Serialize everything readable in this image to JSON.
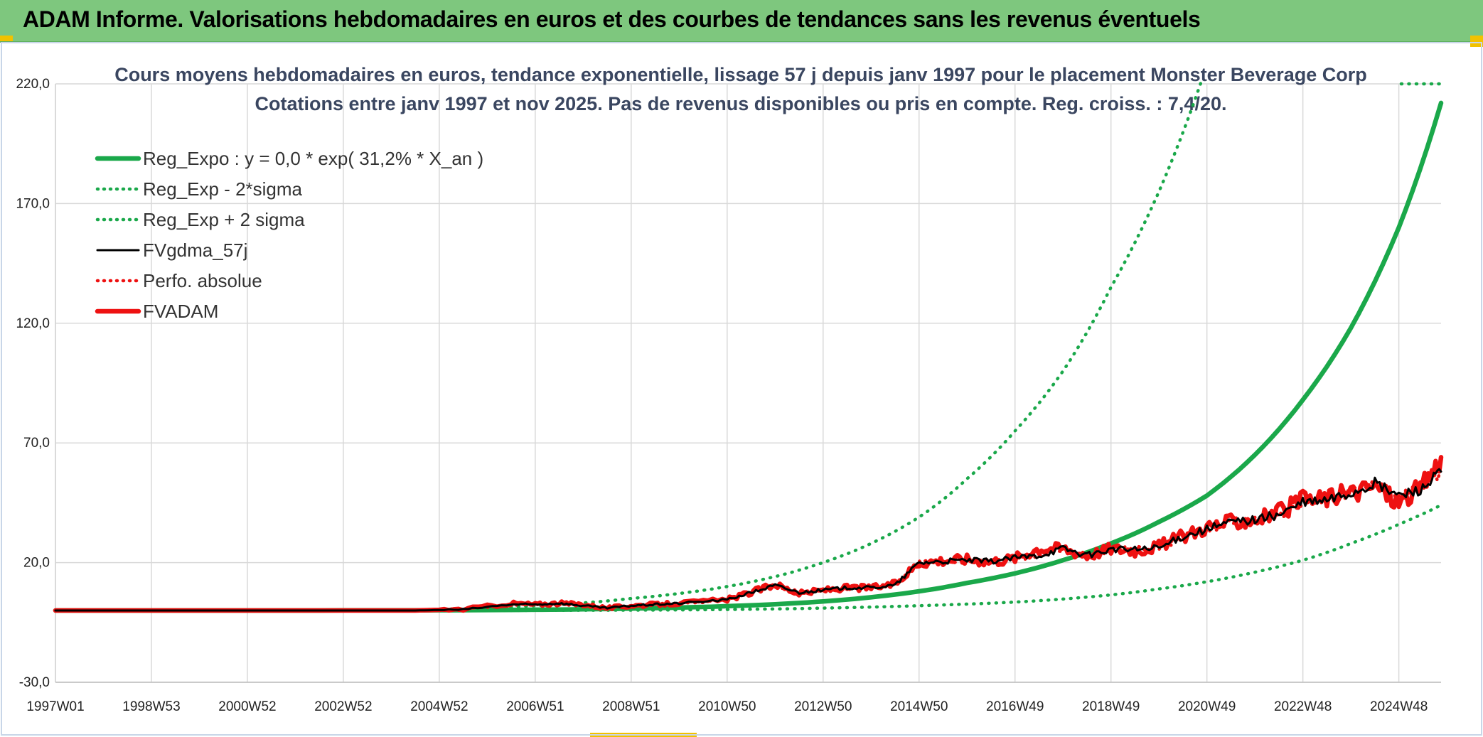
{
  "banner": {
    "title": "ADAM Informe. Valorisations hebdomadaires en euros et des courbes de tendances sans les revenus éventuels"
  },
  "colors": {
    "banner_bg": "#7ec77e",
    "green": "#1aa84a",
    "red": "#ee1111",
    "black": "#000000",
    "grid": "#d9d9d9",
    "title_text": "#3a4660"
  },
  "chart_data": {
    "type": "line",
    "title": "Cours moyens hebdomadaires en euros, tendance exponentielle, lissage 57 j depuis janv 1997 pour le placement Monster Beverage Corp",
    "subtitle": "Cotations entre janv 1997 et nov 2025. Pas de revenus disponibles ou pris en compte. Reg. croiss. : 7,4/20.",
    "xlabel": "",
    "ylabel": "",
    "x_range": [
      1997.0,
      2025.88
    ],
    "ylim": [
      -30,
      220
    ],
    "grid": true,
    "legend_position": "top-left",
    "y_ticks": [
      "220,0",
      "170,0",
      "120,0",
      "70,0",
      "20,0",
      "-30,0"
    ],
    "y_tick_values": [
      220,
      170,
      120,
      70,
      20,
      -30
    ],
    "x_tick_labels": [
      "1997W01",
      "1998W53",
      "2000W52",
      "2002W52",
      "2004W52",
      "2006W51",
      "2008W51",
      "2010W50",
      "2012W50",
      "2014W50",
      "2016W49",
      "2018W49",
      "2020W49",
      "2022W48",
      "2024W48"
    ],
    "x_tick_values": [
      1997.0,
      1999.0,
      2001.0,
      2003.0,
      2005.0,
      2007.0,
      2009.0,
      2011.0,
      2013.0,
      2015.0,
      2017.0,
      2019.0,
      2021.0,
      2023.0,
      2025.0
    ],
    "legend": [
      {
        "label": "Reg_Expo : y = 0,0 * exp( 31,2% *  X_an )",
        "color": "#1aa84a",
        "style": "solid-thick"
      },
      {
        "label": "Reg_Exp - 2*sigma",
        "color": "#1aa84a",
        "style": "dotted"
      },
      {
        "label": "Reg_Exp + 2 sigma",
        "color": "#1aa84a",
        "style": "dotted"
      },
      {
        "label": "FVgdma_57j",
        "color": "#000000",
        "style": "solid"
      },
      {
        "label": "Perfo. absolue",
        "color": "#ee1111",
        "style": "dotted"
      },
      {
        "label": "FVADAM",
        "color": "#ee1111",
        "style": "solid-thick"
      }
    ],
    "series": [
      {
        "name": "Reg_Expo : y = 0,0 * exp( 31,2% *  X_an )",
        "x": [
          1997,
          2000,
          2003,
          2005,
          2007,
          2009,
          2011,
          2013,
          2015,
          2016,
          2017,
          2018,
          2019,
          2020,
          2021,
          2022,
          2023,
          2024,
          2025,
          2025.88
        ],
        "y": [
          0,
          0,
          0,
          0.1,
          0.3,
          0.8,
          1.8,
          3.8,
          8,
          11.5,
          15.5,
          21,
          28,
          37,
          48,
          65,
          88,
          118,
          160,
          212
        ]
      },
      {
        "name": "Reg_Exp - 2*sigma",
        "x": [
          1997,
          2003,
          2007,
          2011,
          2013,
          2015,
          2017,
          2019,
          2020,
          2021,
          2022,
          2023,
          2024,
          2025,
          2025.88
        ],
        "y": [
          0,
          0,
          0,
          0.4,
          1,
          2,
          3.5,
          6.5,
          9,
          12,
          16,
          21,
          28,
          36,
          44
        ]
      },
      {
        "name": "Reg_Exp + 2 sigma",
        "x": [
          1997,
          2003,
          2005,
          2007,
          2009,
          2011,
          2013,
          2014,
          2015,
          2016,
          2017,
          2018,
          2019,
          2020,
          2020.9
        ],
        "y": [
          0,
          0.1,
          0.5,
          2,
          5,
          10,
          20,
          28,
          39,
          55,
          75,
          100,
          135,
          175,
          222
        ]
      },
      {
        "name": "FVgdma_57j",
        "x": [
          1997,
          2004.5,
          2005.5,
          2006.5,
          2007,
          2007.5,
          2008,
          2008.5,
          2009,
          2009.5,
          2010,
          2011,
          2011.5,
          2012,
          2012.5,
          2013,
          2013.5,
          2014,
          2014.5,
          2015,
          2015.5,
          2016,
          2016.5,
          2017,
          2017.5,
          2018,
          2018.5,
          2019,
          2019.5,
          2020,
          2020.5,
          2021,
          2021.5,
          2022,
          2022.5,
          2023,
          2023.5,
          2024,
          2024.5,
          2025,
          2025.5,
          2025.88
        ],
        "y": [
          0,
          0,
          0.4,
          2.5,
          2.5,
          3,
          2,
          1,
          2,
          2.5,
          3,
          4.5,
          7.5,
          10.5,
          7.5,
          8.5,
          9.5,
          9.5,
          10.5,
          20,
          20.5,
          21,
          20.5,
          22,
          23,
          26,
          23,
          25.5,
          25.5,
          26,
          31,
          34,
          37,
          38,
          40,
          45,
          46,
          49,
          53,
          48,
          51,
          58
        ]
      },
      {
        "name": "Perfo. absolue",
        "x": [
          1997,
          2004.5,
          2005.5,
          2006.5,
          2007,
          2007.5,
          2008,
          2008.5,
          2009,
          2009.5,
          2010,
          2011,
          2011.5,
          2012,
          2012.5,
          2013,
          2013.5,
          2014,
          2014.5,
          2015,
          2015.5,
          2016,
          2016.5,
          2017,
          2017.5,
          2018,
          2018.5,
          2019,
          2019.5,
          2020,
          2020.5,
          2021,
          2021.5,
          2022,
          2022.5,
          2023,
          2023.5,
          2024,
          2024.5,
          2025,
          2025.5,
          2025.88
        ],
        "y": [
          0,
          0,
          0.4,
          2.5,
          2.5,
          3,
          2,
          1,
          2,
          2.5,
          3,
          4.5,
          7.5,
          10.5,
          7.5,
          8.5,
          9.5,
          9.5,
          10.5,
          20,
          20.5,
          21,
          20.5,
          22,
          23,
          26,
          23,
          25.5,
          25.5,
          26,
          31,
          34,
          37,
          38,
          40,
          45,
          46,
          49,
          53,
          48,
          51,
          58
        ]
      },
      {
        "name": "FVADAM",
        "x": [
          1997,
          2004.5,
          2005.5,
          2006.5,
          2007,
          2007.5,
          2008,
          2008.5,
          2009,
          2009.5,
          2010,
          2011,
          2011.5,
          2012,
          2012.5,
          2013,
          2013.5,
          2014,
          2014.5,
          2015,
          2015.5,
          2016,
          2016.5,
          2017,
          2017.5,
          2018,
          2018.5,
          2019,
          2019.5,
          2020,
          2020.5,
          2021,
          2021.5,
          2022,
          2022.5,
          2023,
          2023.5,
          2024,
          2024.5,
          2025,
          2025.5,
          2025.88
        ],
        "y": [
          0,
          0,
          0.5,
          3,
          2.5,
          3,
          2.5,
          1,
          2,
          2.5,
          3,
          4.5,
          7.5,
          11,
          7,
          8.5,
          9.5,
          9.5,
          11,
          20,
          21,
          21.5,
          20.5,
          22,
          26,
          26,
          23,
          26,
          25,
          27,
          31,
          35,
          37,
          38,
          41,
          46,
          47,
          49,
          52,
          45,
          52,
          64
        ]
      }
    ]
  }
}
